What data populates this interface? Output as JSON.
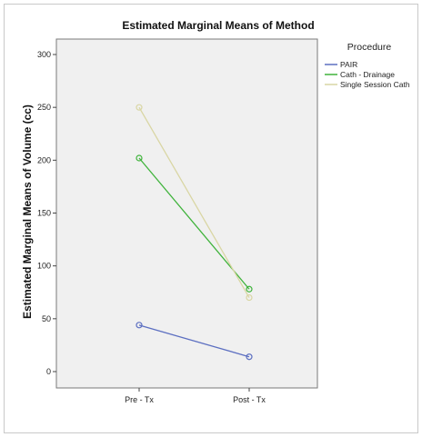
{
  "chart_data": {
    "type": "line",
    "title": "Estimated Marginal Means of Method",
    "xlabel": "",
    "ylabel": "Estimated Marginal Means of Volume (cc)",
    "categories": [
      "Pre - Tx",
      "Post - Tx"
    ],
    "ylim": [
      -15,
      325
    ],
    "yticks": [
      0,
      50,
      100,
      150,
      200,
      250,
      300
    ],
    "legend_title": "Procedure",
    "legend_position": "right",
    "grid": false,
    "plot_background": "#f0f0f0",
    "series": [
      {
        "name": "PAIR",
        "color": "#5c6fc1",
        "values": [
          44,
          14
        ]
      },
      {
        "name": "Cath - Drainage",
        "color": "#3fb33b",
        "values": [
          202,
          78
        ]
      },
      {
        "name": "Single Session Cath",
        "color": "#d9d6a4",
        "values": [
          250,
          70
        ]
      }
    ]
  }
}
